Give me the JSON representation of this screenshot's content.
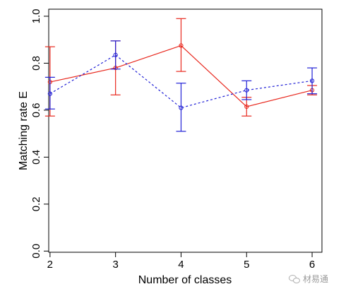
{
  "chart_data": {
    "type": "line",
    "xlabel": "Number of classes",
    "ylabel": "Matching rate E",
    "x": [
      2,
      3,
      4,
      5,
      6
    ],
    "xlim": [
      1.98,
      6.15
    ],
    "ylim": [
      -0.005,
      1.03
    ],
    "xticks": [
      "2",
      "3",
      "4",
      "5",
      "6"
    ],
    "yticks": [
      "0.0",
      "0.2",
      "0.4",
      "0.6",
      "0.8",
      "1.0"
    ],
    "grid": false,
    "legend": "none",
    "series": [
      {
        "color": "#e8281e",
        "linestyle": "solid",
        "values": [
          0.72,
          0.78,
          0.875,
          0.615,
          0.685
        ],
        "err_low": [
          0.575,
          0.665,
          0.765,
          0.575,
          0.665
        ],
        "err_high": [
          0.87,
          0.895,
          0.99,
          0.655,
          0.705
        ]
      },
      {
        "color": "#2121d6",
        "linestyle": "dashed",
        "values": [
          0.67,
          0.835,
          0.61,
          0.685,
          0.725
        ],
        "err_low": [
          0.605,
          0.775,
          0.51,
          0.645,
          0.67
        ],
        "err_high": [
          0.74,
          0.895,
          0.715,
          0.725,
          0.78
        ]
      }
    ]
  },
  "watermark": {
    "icon": "wechat-icon",
    "text": "材易通"
  }
}
